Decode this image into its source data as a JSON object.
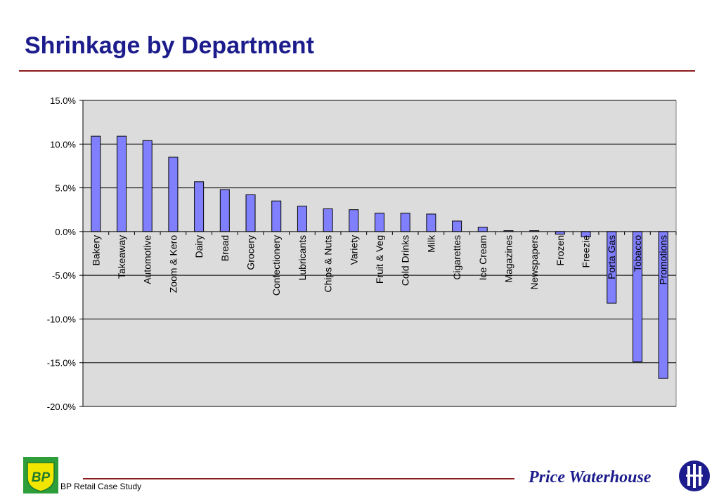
{
  "header": {
    "title": "Shrinkage by Department"
  },
  "footer": {
    "case_study": "BP Retail Case Study",
    "firm": "Price Waterhouse"
  },
  "logos": {
    "bp": "BP",
    "bp_icon": "bp-shield-logo-icon",
    "pw_icon": "price-waterhouse-globe-logo-icon"
  },
  "colors": {
    "bar": "#8080ff",
    "plot_bg": "#dcdcdc",
    "title": "#1c1c8c",
    "rule": "#8b1a1a"
  },
  "chart_data": {
    "type": "bar",
    "title": "",
    "xlabel": "",
    "ylabel": "",
    "ylim": [
      -20,
      15
    ],
    "yticks": [
      15,
      10,
      5,
      0,
      -5,
      -10,
      -15,
      -20
    ],
    "ytick_labels": [
      "15.0%",
      "10.0%",
      "5.0%",
      "0.0%",
      "-5.0%",
      "-10.0%",
      "-15.0%",
      "-20.0%"
    ],
    "grid": true,
    "legend": "none",
    "categories": [
      "Bakery",
      "Takeaway",
      "Automotive",
      "Zoom & Kero",
      "Dairy",
      "Bread",
      "Grocery",
      "Confectionery",
      "Lubricants",
      "Chips & Nuts",
      "Variety",
      "Fruit & Veg",
      "Cold Drinks",
      "Milk",
      "Cigarettes",
      "Ice Cream",
      "Magazines",
      "Newspapers",
      "Frozen",
      "Freezie",
      "Porta Gas",
      "Tobacco",
      "Promotions"
    ],
    "values": [
      10.9,
      10.9,
      10.4,
      8.5,
      5.7,
      4.8,
      4.2,
      3.5,
      2.9,
      2.6,
      2.5,
      2.1,
      2.1,
      2.0,
      1.2,
      0.5,
      0.1,
      0.1,
      -0.3,
      -0.6,
      -8.2,
      -14.9,
      -16.8
    ]
  }
}
